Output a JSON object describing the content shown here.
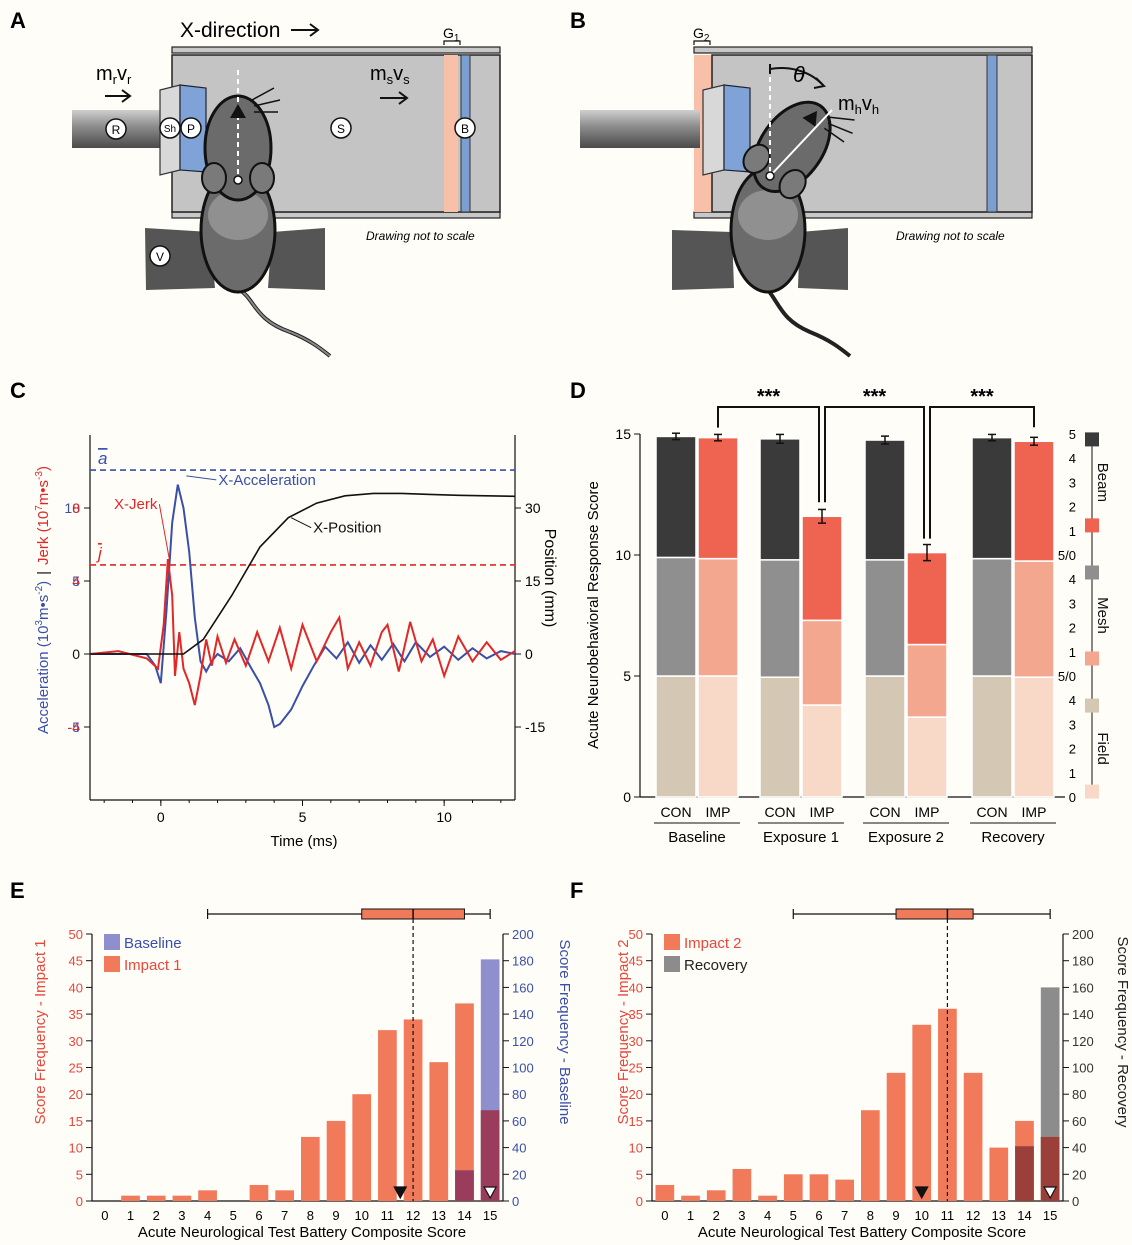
{
  "panels": {
    "A": {
      "letter": "A",
      "direction_label": "X-direction",
      "gap_label": "G",
      "gap_sub": "1",
      "rod_momentum": "m",
      "rod_momentum_sub1": "r",
      "rod_momentum_v": "v",
      "rod_momentum_sub2": "r",
      "sled_momentum": "m",
      "sled_momentum_sub1": "s",
      "sled_momentum_v": "v",
      "sled_momentum_sub2": "s",
      "circle_labels": [
        "R",
        "Sh",
        "P",
        "S",
        "B",
        "V"
      ],
      "note": "Drawing not to scale"
    },
    "B": {
      "letter": "B",
      "gap_label": "G",
      "gap_sub": "2",
      "angle_label": "θ",
      "head_momentum": "m",
      "head_momentum_sub1": "h",
      "head_momentum_v": "v",
      "head_momentum_sub2": "h",
      "note": "Drawing not to scale"
    },
    "C": {
      "letter": "C"
    },
    "D": {
      "letter": "D"
    },
    "E": {
      "letter": "E"
    },
    "F": {
      "letter": "F"
    }
  },
  "chart_data": [
    {
      "panel": "C",
      "type": "line",
      "xlabel": "Time (ms)",
      "xlim": [
        -2.5,
        12.5
      ],
      "x_ticks": [
        0,
        5,
        10
      ],
      "left_ylabel_parts": [
        "Acceleration (10",
        "3",
        "m•s",
        "-2",
        ")",
        "|",
        "Jerk (10",
        "7",
        "m•s",
        "-3",
        ")"
      ],
      "accel_ticks": [
        "10",
        "5",
        "0",
        "-5"
      ],
      "jerk_ticks": [
        "8",
        "4",
        "-4"
      ],
      "right_ylabel": "Position  (mm)",
      "position_ticks": [
        "30",
        "15",
        "0",
        "-15"
      ],
      "ylim_acceleration": [
        -10,
        15
      ],
      "ylim_position": [
        -30,
        45
      ],
      "mean_acceleration_label": "a",
      "mean_acceleration": 12.6,
      "mean_jerk_label": "j",
      "mean_jerk_accel_units": 6.1,
      "series": [
        {
          "name": "X-Acceleration",
          "color": "#3a4fa8",
          "x": [
            -2.5,
            -1.5,
            -0.5,
            -0.2,
            0.0,
            0.2,
            0.4,
            0.6,
            0.8,
            1.0,
            1.2,
            1.4,
            1.6,
            1.8,
            2.0,
            2.4,
            2.8,
            3.2,
            3.5,
            3.8,
            4.0,
            4.2,
            4.6,
            5.0,
            5.4,
            5.8,
            6.2,
            6.6,
            7.0,
            7.4,
            7.8,
            8.2,
            8.6,
            9.0,
            9.5,
            10.0,
            10.5,
            11.0,
            11.5,
            12.0,
            12.5
          ],
          "y": [
            0,
            0,
            0,
            -0.8,
            -2.0,
            3.0,
            9.0,
            11.6,
            10.0,
            7.0,
            2.5,
            -0.5,
            -1.2,
            -0.5,
            0.0,
            -0.5,
            0.4,
            -1.0,
            -2.0,
            -3.5,
            -5.0,
            -4.8,
            -3.8,
            -2.2,
            -0.8,
            0.5,
            -0.3,
            0.8,
            -0.6,
            0.6,
            -0.4,
            0.7,
            -0.5,
            0.8,
            -0.2,
            0.5,
            -0.4,
            0.4,
            -0.3,
            0.2,
            0
          ]
        },
        {
          "name": "X-Jerk",
          "color": "#e02828",
          "x": [
            -2.5,
            -1.5,
            -0.5,
            -0.1,
            0.1,
            0.25,
            0.4,
            0.5,
            0.65,
            0.8,
            1.0,
            1.2,
            1.4,
            1.6,
            1.8,
            2.0,
            2.3,
            2.6,
            3.0,
            3.4,
            3.8,
            4.2,
            4.6,
            5.0,
            5.5,
            6.0,
            6.3,
            6.6,
            7.0,
            7.4,
            7.8,
            8.0,
            8.4,
            8.8,
            9.2,
            9.6,
            10.0,
            10.5,
            11.0,
            11.5,
            12.0,
            12.5
          ],
          "y": [
            0,
            0.2,
            -0.3,
            -1.0,
            2.0,
            6.5,
            4.0,
            -1.5,
            1.5,
            -1.0,
            -2.0,
            -3.5,
            -1.5,
            1.0,
            -0.8,
            1.2,
            -0.6,
            1.0,
            -0.8,
            1.5,
            -0.5,
            1.8,
            -1.0,
            2.0,
            -0.5,
            1.5,
            2.5,
            -1.0,
            0.8,
            -0.8,
            1.5,
            2.0,
            -1.2,
            2.2,
            -0.5,
            1.0,
            -1.5,
            1.2,
            -0.5,
            0.8,
            -0.4,
            0.2
          ]
        },
        {
          "name": "X-Position",
          "color": "#111111",
          "x": [
            -2.5,
            0.8,
            1.5,
            2.5,
            3.5,
            4.5,
            5.5,
            6.5,
            7.5,
            8.5,
            9.5,
            10.5,
            11.5,
            12.5
          ],
          "y": [
            0,
            0,
            3,
            12,
            22,
            28,
            31,
            32.5,
            33,
            33,
            32.8,
            32.6,
            32.5,
            32.4
          ]
        }
      ]
    },
    {
      "panel": "D",
      "type": "bar",
      "ylabel": "Acute Neurobehavioral Response Score",
      "ylim": [
        0,
        15
      ],
      "y_ticks": [
        "0",
        "5",
        "10",
        "15"
      ],
      "groups": [
        "Baseline",
        "Exposure 1",
        "Exposure 2",
        "Recovery"
      ],
      "bar_labels": [
        "CON",
        "IMP",
        "CON",
        "IMP",
        "CON",
        "IMP",
        "CON",
        "IMP"
      ],
      "stacks": [
        "Field",
        "Mesh",
        "Beam"
      ],
      "field": [
        5,
        5,
        4.95,
        3.8,
        5,
        3.3,
        5,
        4.95
      ],
      "mesh": [
        4.9,
        4.85,
        4.85,
        3.5,
        4.8,
        3.0,
        4.85,
        4.8
      ],
      "beam": [
        5,
        5,
        5,
        4.3,
        4.95,
        3.8,
        5,
        4.95
      ],
      "error": [
        0.05,
        0.05,
        0.1,
        0.2,
        0.08,
        0.25,
        0.05,
        0.08
      ],
      "significance": [
        {
          "from": "Baseline IMP",
          "to": "Exposure 1 IMP",
          "label": "***"
        },
        {
          "from": "Exposure 1 IMP",
          "to": "Exposure 2 IMP",
          "label": "***"
        },
        {
          "from": "Exposure 2 IMP",
          "to": "Recovery IMP",
          "label": "***"
        }
      ],
      "right_legend": {
        "sections": [
          {
            "name": "Beam",
            "ticks": [
              "5",
              "4",
              "3",
              "2",
              "1",
              "5/0"
            ]
          },
          {
            "name": "Mesh",
            "ticks": [
              "4",
              "3",
              "2",
              "1",
              "5/0"
            ]
          },
          {
            "name": "Field",
            "ticks": [
              "4",
              "3",
              "2",
              "1",
              "0"
            ]
          }
        ]
      },
      "colors": {
        "con_field": "#d4c8b4",
        "con_mesh": "#8f8f8f",
        "con_beam": "#3a3a3a",
        "imp_field": "#f8d9c8",
        "imp_mesh": "#f4a78f",
        "imp_beam": "#ef6351"
      }
    },
    {
      "panel": "E",
      "type": "bar",
      "xlabel": "Acute Neurological Test Battery Composite Score",
      "left_ylabel": "Score Frequency - Impact 1",
      "right_ylabel": "Score Frequency - Baseline",
      "left_ylim": [
        0,
        50
      ],
      "right_ylim": [
        0,
        200
      ],
      "left_ticks": [
        "0",
        "5",
        "10",
        "15",
        "20",
        "25",
        "30",
        "35",
        "40",
        "45",
        "50"
      ],
      "right_ticks": [
        "0",
        "20",
        "40",
        "60",
        "80",
        "100",
        "120",
        "140",
        "160",
        "180",
        "200"
      ],
      "categories": [
        "0",
        "1",
        "2",
        "3",
        "4",
        "5",
        "6",
        "7",
        "8",
        "9",
        "10",
        "11",
        "12",
        "13",
        "14",
        "15"
      ],
      "series": [
        {
          "name": "Impact 1",
          "axis": "left",
          "color": "#f07a5a",
          "values": [
            0,
            1,
            1,
            1,
            2,
            0,
            3,
            2,
            12,
            15,
            20,
            32,
            34,
            26,
            37,
            17
          ]
        },
        {
          "name": "Baseline",
          "axis": "right",
          "color": "#8f8fce",
          "values": [
            0,
            0,
            0,
            0,
            0,
            0,
            0,
            0,
            0,
            0,
            0,
            0,
            0,
            0,
            23,
            181
          ]
        }
      ],
      "legend": [
        "Baseline",
        "Impact 1"
      ],
      "median_line": 12,
      "boxplot": {
        "min": 4,
        "q1": 10,
        "median": 12,
        "q3": 14,
        "max": 15
      },
      "markers": [
        {
          "x": 11.5,
          "style": "filled"
        },
        {
          "x": 15,
          "style": "open"
        }
      ]
    },
    {
      "panel": "F",
      "type": "bar",
      "xlabel": "Acute Neurological Test Battery Composite Score",
      "left_ylabel": "Score Frequency - Impact 2",
      "right_ylabel": "Score Frequency - Recovery",
      "left_ylim": [
        0,
        50
      ],
      "right_ylim": [
        0,
        200
      ],
      "left_ticks": [
        "0",
        "5",
        "10",
        "15",
        "20",
        "25",
        "30",
        "35",
        "40",
        "45",
        "50"
      ],
      "right_ticks": [
        "0",
        "20",
        "40",
        "60",
        "80",
        "100",
        "120",
        "140",
        "160",
        "180",
        "200"
      ],
      "categories": [
        "0",
        "1",
        "2",
        "3",
        "4",
        "5",
        "6",
        "7",
        "8",
        "9",
        "10",
        "11",
        "12",
        "13",
        "14",
        "15"
      ],
      "series": [
        {
          "name": "Impact 2",
          "axis": "left",
          "color": "#f07a5a",
          "values": [
            3,
            1,
            2,
            6,
            1,
            5,
            5,
            4,
            17,
            24,
            33,
            36,
            24,
            10,
            15,
            12
          ]
        },
        {
          "name": "Recovery",
          "axis": "right",
          "color": "#8c8c8c",
          "values": [
            0,
            0,
            0,
            0,
            0,
            0,
            0,
            0,
            0,
            0,
            0,
            0,
            0,
            0,
            41,
            160
          ]
        }
      ],
      "legend": [
        "Impact 2",
        "Recovery"
      ],
      "median_line": 11,
      "boxplot": {
        "min": 5,
        "q1": 9,
        "median": 11,
        "q3": 12,
        "max": 15
      },
      "markers": [
        {
          "x": 10,
          "style": "filled"
        },
        {
          "x": 15,
          "style": "open"
        }
      ]
    }
  ]
}
